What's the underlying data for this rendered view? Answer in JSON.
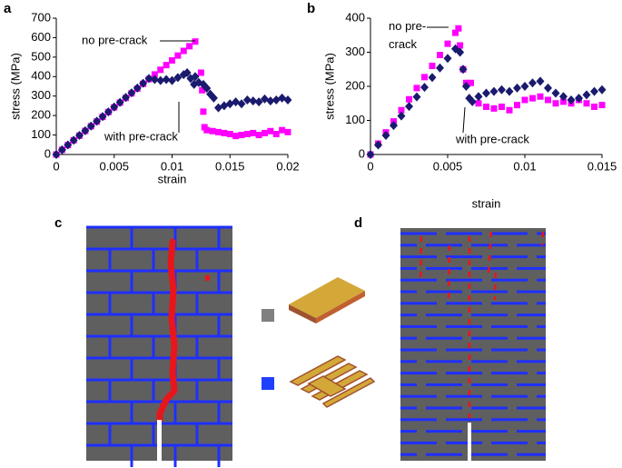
{
  "panel_labels": [
    "a",
    "b",
    "c",
    "d"
  ],
  "chart_data": [
    {
      "type": "scatter",
      "xlabel": "strain",
      "ylabel": "stress (MPa)",
      "xlim": [
        0,
        0.02
      ],
      "xticks": [
        0,
        0.005,
        0.01,
        0.015,
        0.02
      ],
      "ylim": [
        0,
        700
      ],
      "yticks": [
        0,
        100,
        200,
        300,
        400,
        500,
        600,
        700
      ],
      "grid": false,
      "series": [
        {
          "name": "no pre-crack",
          "color": "#ff00ff",
          "marker": "square",
          "x": [
            0,
            0.0005,
            0.001,
            0.0015,
            0.002,
            0.0025,
            0.003,
            0.0035,
            0.004,
            0.0045,
            0.005,
            0.0055,
            0.006,
            0.0065,
            0.007,
            0.0075,
            0.008,
            0.0085,
            0.009,
            0.0095,
            0.01,
            0.0105,
            0.011,
            0.0115,
            0.012,
            0.0125,
            0.0126,
            0.0127,
            0.0128,
            0.013,
            0.0135,
            0.014,
            0.0145,
            0.015,
            0.0155,
            0.016,
            0.0165,
            0.017,
            0.0175,
            0.018,
            0.0185,
            0.019,
            0.0195,
            0.02
          ],
          "values": [
            0,
            24,
            48,
            73,
            97,
            121,
            145,
            169,
            193,
            218,
            242,
            266,
            290,
            314,
            338,
            363,
            387,
            411,
            435,
            459,
            483,
            508,
            532,
            556,
            580,
            420,
            330,
            220,
            140,
            125,
            120,
            115,
            110,
            105,
            95,
            100,
            105,
            110,
            100,
            110,
            120,
            105,
            125,
            115
          ]
        },
        {
          "name": "with pre-crack",
          "color": "#1a1a6e",
          "marker": "diamond",
          "x": [
            0,
            0.0005,
            0.001,
            0.0015,
            0.002,
            0.0025,
            0.003,
            0.0035,
            0.004,
            0.0045,
            0.005,
            0.0055,
            0.006,
            0.0065,
            0.007,
            0.0075,
            0.008,
            0.0085,
            0.009,
            0.0095,
            0.01,
            0.0105,
            0.011,
            0.0113,
            0.0116,
            0.0119,
            0.012,
            0.0123,
            0.0127,
            0.013,
            0.0133,
            0.0136,
            0.014,
            0.0145,
            0.015,
            0.0155,
            0.016,
            0.0165,
            0.017,
            0.0175,
            0.018,
            0.0185,
            0.019,
            0.0195,
            0.02
          ],
          "values": [
            0,
            24,
            49,
            73,
            98,
            122,
            146,
            171,
            195,
            219,
            244,
            268,
            293,
            317,
            341,
            366,
            390,
            385,
            380,
            385,
            380,
            395,
            410,
            420,
            390,
            360,
            400,
            370,
            360,
            340,
            310,
            290,
            240,
            250,
            260,
            270,
            260,
            280,
            275,
            270,
            285,
            275,
            280,
            290,
            280
          ]
        }
      ]
    },
    {
      "type": "scatter",
      "xlabel": "strain",
      "ylabel": "stress (MPa)",
      "xlim": [
        0,
        0.015
      ],
      "xticks": [
        0,
        0.005,
        0.01,
        0.015
      ],
      "ylim": [
        0,
        400
      ],
      "yticks": [
        0,
        100,
        200,
        300,
        400
      ],
      "grid": false,
      "series": [
        {
          "name": "no pre-crack",
          "color": "#ff00ff",
          "marker": "square",
          "x": [
            0,
            0.0005,
            0.001,
            0.0015,
            0.002,
            0.0025,
            0.003,
            0.0035,
            0.004,
            0.0045,
            0.005,
            0.0055,
            0.0057,
            0.0058,
            0.006,
            0.0062,
            0.0065,
            0.007,
            0.0075,
            0.008,
            0.0085,
            0.009,
            0.0095,
            0.01,
            0.0105,
            0.011,
            0.0115,
            0.012,
            0.0125,
            0.013,
            0.0135,
            0.014,
            0.0145,
            0.015
          ],
          "values": [
            0,
            32,
            65,
            97,
            130,
            162,
            195,
            227,
            260,
            292,
            325,
            357,
            370,
            320,
            250,
            210,
            210,
            150,
            140,
            135,
            140,
            130,
            145,
            160,
            165,
            170,
            160,
            150,
            155,
            150,
            160,
            150,
            140,
            145
          ]
        },
        {
          "name": "with pre-crack",
          "color": "#1a1a6e",
          "marker": "diamond",
          "x": [
            0,
            0.0005,
            0.001,
            0.0015,
            0.002,
            0.0025,
            0.003,
            0.0035,
            0.004,
            0.0045,
            0.005,
            0.0055,
            0.0058,
            0.006,
            0.0062,
            0.0064,
            0.0066,
            0.007,
            0.0075,
            0.008,
            0.0085,
            0.009,
            0.0095,
            0.01,
            0.0105,
            0.011,
            0.0115,
            0.012,
            0.0125,
            0.013,
            0.0135,
            0.014,
            0.0145,
            0.015
          ],
          "values": [
            0,
            28,
            56,
            85,
            113,
            141,
            169,
            197,
            226,
            254,
            282,
            310,
            300,
            250,
            200,
            165,
            155,
            170,
            180,
            185,
            190,
            185,
            195,
            200,
            210,
            215,
            195,
            180,
            170,
            160,
            165,
            175,
            185,
            190
          ]
        }
      ]
    }
  ]
}
